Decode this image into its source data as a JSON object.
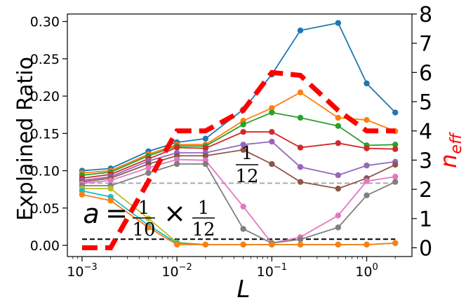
{
  "chart_data": {
    "type": "line",
    "xscale": "log",
    "xlabel": "L",
    "ylabel": "Explained Ratio",
    "y2label_main": "n",
    "y2label_sub": "eff",
    "xlim": [
      0.0007,
      3.0
    ],
    "ylim": [
      -0.015,
      0.31
    ],
    "y2lim": [
      -0.3,
      8.0
    ],
    "x_ticks": [
      0.001,
      0.01,
      0.1,
      1.0
    ],
    "x_tick_labels": [
      {
        "base": "10",
        "exp": "−3"
      },
      {
        "base": "10",
        "exp": "−2"
      },
      {
        "base": "10",
        "exp": "−1"
      },
      {
        "base": "10",
        "exp": "0"
      }
    ],
    "y_ticks": [
      0.0,
      0.05,
      0.1,
      0.15,
      0.2,
      0.25,
      0.3
    ],
    "y_tick_labels": [
      "0.00",
      "0.05",
      "0.10",
      "0.15",
      "0.20",
      "0.25",
      "0.30"
    ],
    "y2_ticks": [
      0,
      1,
      2,
      3,
      4,
      5,
      6,
      7,
      8
    ],
    "y2_tick_labels": [
      "0",
      "1",
      "2",
      "3",
      "4",
      "5",
      "6",
      "7",
      "8"
    ],
    "x": [
      0.001,
      0.002,
      0.005,
      0.01,
      0.02,
      0.05,
      0.1,
      0.2,
      0.5,
      1.0,
      2.0
    ],
    "series": [
      {
        "name": "C0",
        "color": "#1f77b4",
        "values": [
          0.1,
          0.103,
          0.126,
          0.138,
          0.143,
          0.182,
          0.229,
          0.288,
          0.298,
          0.217,
          0.178
        ]
      },
      {
        "name": "C1",
        "color": "#ff7f0e",
        "values": [
          0.097,
          0.1,
          0.122,
          0.135,
          0.135,
          0.167,
          0.184,
          0.205,
          0.171,
          0.168,
          0.153
        ]
      },
      {
        "name": "C2",
        "color": "#2ca02c",
        "values": [
          0.094,
          0.098,
          0.12,
          0.133,
          0.133,
          0.162,
          0.178,
          0.171,
          0.16,
          0.134,
          0.135
        ]
      },
      {
        "name": "C3",
        "color": "#d62728",
        "values": [
          0.09,
          0.095,
          0.116,
          0.131,
          0.13,
          0.152,
          0.152,
          0.131,
          0.137,
          0.13,
          0.129
        ]
      },
      {
        "name": "C4",
        "color": "#9467bd",
        "values": [
          0.087,
          0.092,
          0.113,
          0.124,
          0.124,
          0.135,
          0.139,
          0.105,
          0.094,
          0.107,
          0.112
        ]
      },
      {
        "name": "C5",
        "color": "#8c564b",
        "values": [
          0.085,
          0.09,
          0.109,
          0.12,
          0.12,
          0.128,
          0.109,
          0.085,
          0.076,
          0.09,
          0.108
        ]
      },
      {
        "name": "C6",
        "color": "#e377c2",
        "values": [
          0.083,
          0.087,
          0.104,
          0.115,
          0.114,
          0.052,
          0.003,
          0.011,
          0.04,
          0.086,
          0.092
        ]
      },
      {
        "name": "C7",
        "color": "#7f7f7f",
        "values": [
          0.08,
          0.08,
          0.097,
          0.109,
          0.109,
          0.022,
          0.003,
          0.008,
          0.024,
          0.067,
          0.085
        ]
      },
      {
        "name": "C8",
        "color": "#bcbd22",
        "values": [
          0.076,
          0.076,
          0.036,
          0.004,
          0.001,
          0.001,
          0.001,
          0.001,
          0.001,
          0.001,
          0.003
        ]
      },
      {
        "name": "C9",
        "color": "#17becf",
        "values": [
          0.073,
          0.065,
          0.027,
          0.003,
          0.001,
          0.001,
          0.001,
          0.001,
          0.001,
          0.001,
          0.003
        ]
      },
      {
        "name": "C1b",
        "color": "#ff7f0e",
        "values": [
          0.068,
          0.06,
          0.024,
          0.001,
          0.001,
          0.001,
          0.001,
          0.001,
          0.001,
          0.001,
          0.003
        ]
      }
    ],
    "n_eff": {
      "color": "#ff0000",
      "x": [
        0.001,
        0.002,
        0.01,
        0.02,
        0.05,
        0.1,
        0.2,
        0.5,
        1.0,
        2.0
      ],
      "values": [
        0,
        0,
        4,
        4,
        4.7,
        6,
        5.9,
        4.7,
        4,
        4
      ]
    },
    "ref_lines": [
      {
        "name": "gray-reference",
        "y": 0.0833,
        "color": "#aaaaaa",
        "style": "dashed"
      },
      {
        "name": "black-reference",
        "y": 0.0083,
        "color": "#000000",
        "style": "dashed"
      }
    ],
    "annotations": {
      "a_eq": {
        "lhs": "a",
        "eq": "=",
        "frac1_num": "1",
        "frac1_den": "10",
        "times": "×",
        "frac2_num": "1",
        "frac2_den": "12"
      },
      "twelfth": {
        "num": "1",
        "den": "12"
      }
    }
  }
}
